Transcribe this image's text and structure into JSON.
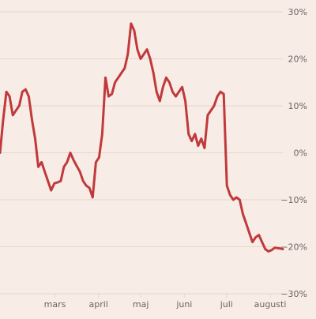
{
  "colors": {
    "background": "#f8ece6",
    "line": "#c0393b",
    "grid": "#e6d6cf",
    "tick_text": "#6e6461"
  },
  "chart_data": {
    "type": "line",
    "title": "",
    "xlabel": "",
    "ylabel": "",
    "ylim": [
      -30,
      30
    ],
    "y_ticks": [
      30,
      20,
      10,
      0,
      -10,
      -20,
      -30
    ],
    "y_tick_labels": [
      "30%",
      "20%",
      "10%",
      "0%",
      "−10%",
      "−20%",
      "−30%"
    ],
    "y_axis_position": "right",
    "grid": true,
    "legend": "none",
    "x_domain": [
      0,
      177
    ],
    "x_ticks": [
      {
        "day": 39,
        "label": "mars"
      },
      {
        "day": 70,
        "label": "april"
      },
      {
        "day": 100,
        "label": "maj"
      },
      {
        "day": 131,
        "label": "juni"
      },
      {
        "day": 161,
        "label": "juli"
      },
      {
        "day": 192,
        "label": "augusti"
      }
    ],
    "series": [
      {
        "name": "",
        "x": [
          0,
          2,
          4,
          6,
          8,
          10,
          12,
          14,
          16,
          18,
          20,
          22,
          24,
          26,
          28,
          30,
          32,
          34,
          36,
          38,
          40,
          42,
          44,
          46,
          48,
          50,
          52,
          54,
          56,
          58,
          60,
          62,
          64,
          66,
          68,
          70,
          72,
          74,
          76,
          78,
          80,
          82,
          84,
          86,
          88,
          90,
          92,
          94,
          96,
          98,
          100,
          102,
          104,
          106,
          108,
          110,
          112,
          114,
          116,
          118,
          120,
          122,
          124,
          126,
          128,
          130,
          132,
          134,
          136,
          138,
          140,
          142,
          144,
          146,
          148,
          150,
          152,
          154,
          156,
          158,
          160,
          162,
          164,
          166,
          168,
          170,
          172,
          174,
          176,
          177
        ],
        "y": [
          0,
          7,
          13,
          12,
          8,
          9,
          10,
          13,
          13.5,
          12,
          7,
          3,
          -3,
          -2,
          -4,
          -6,
          -8,
          -6.5,
          -6.3,
          -6,
          -3,
          -2,
          0,
          -1.5,
          -2.8,
          -4,
          -6,
          -7,
          -7.5,
          -9.5,
          -2,
          -1,
          4,
          16,
          12,
          12.5,
          15,
          16,
          17,
          18,
          21,
          27.5,
          26,
          22,
          20,
          21,
          22,
          20,
          17,
          13,
          11,
          14,
          16,
          15,
          13,
          12,
          13,
          14,
          11,
          4,
          2.5,
          4,
          1.5,
          3,
          1,
          8,
          9,
          10,
          12,
          13,
          12.5,
          -7,
          -9,
          -10,
          -9.5,
          -10,
          -13,
          -15,
          -17,
          -19,
          -18,
          -17.5,
          -19,
          -20.5,
          -21,
          -20.7,
          -20.2,
          -20.3,
          -20.4,
          -20.5
        ],
        "values_note": ""
      }
    ]
  }
}
